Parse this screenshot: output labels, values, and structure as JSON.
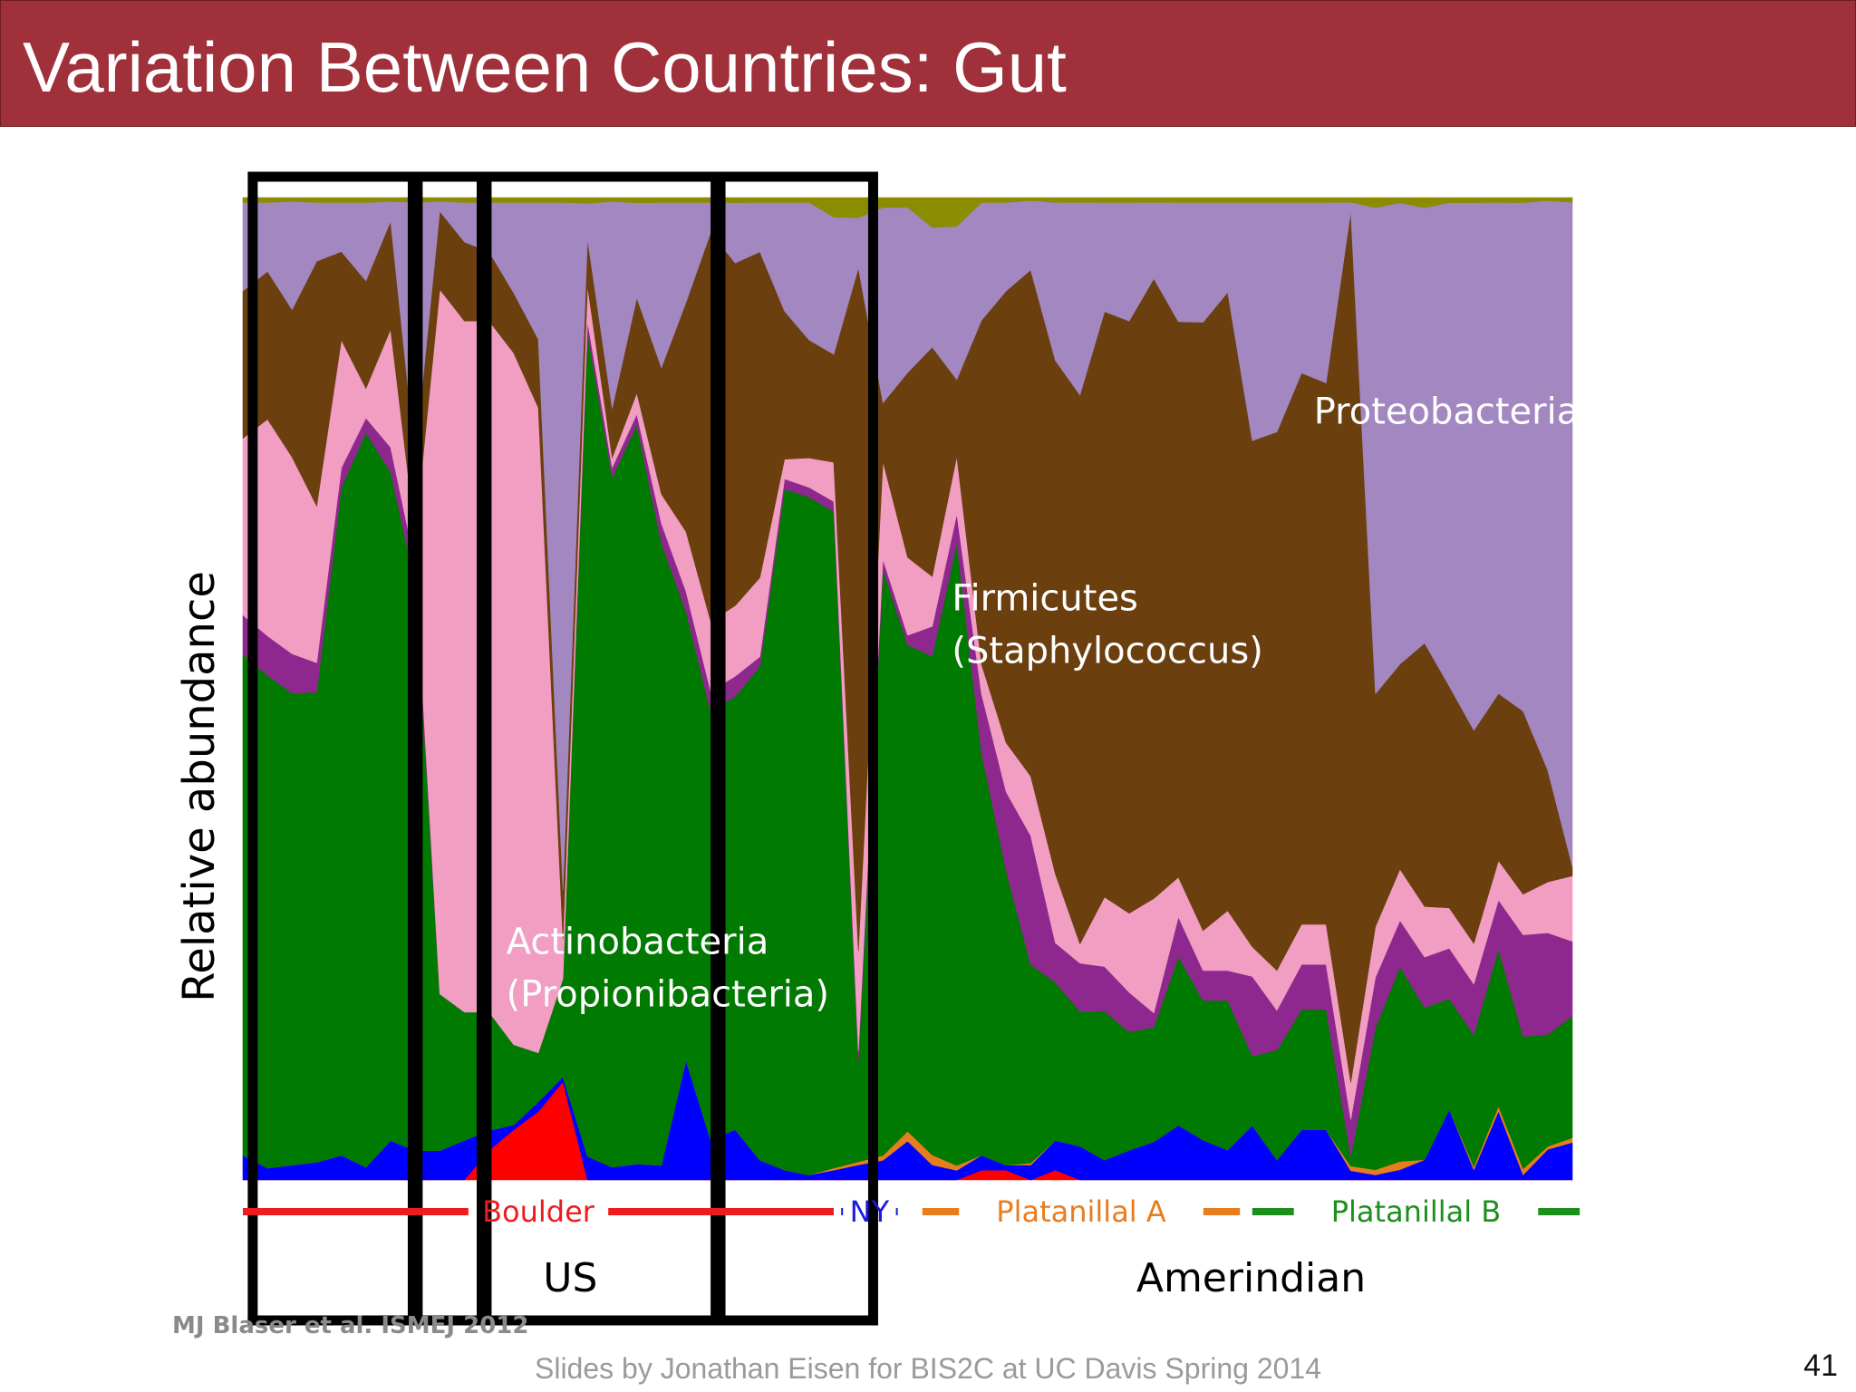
{
  "slide": {
    "title": "Variation Between Countries: Gut",
    "citation": "MJ Blaser et al. ISMEJ 2012",
    "footer": "Slides by Jonathan Eisen for BIS2C at UC Davis Spring 2014",
    "page_number": "41",
    "title_bar_color": "#a0303a"
  },
  "chart_data": {
    "type": "area",
    "stacked": "percent",
    "ylabel": "Relative abundance",
    "xlabel": "",
    "ylim": [
      0,
      1
    ],
    "n_samples": 55,
    "x": [
      1,
      2,
      3,
      4,
      5,
      6,
      7,
      8,
      9,
      10,
      11,
      12,
      13,
      14,
      15,
      16,
      17,
      18,
      19,
      20,
      21,
      22,
      23,
      24,
      25,
      26,
      27,
      28,
      29,
      30,
      31,
      32,
      33,
      34,
      35,
      36,
      37,
      38,
      39,
      40,
      41,
      42,
      43,
      44,
      45,
      46,
      47,
      48,
      49,
      50,
      51,
      52,
      53,
      54,
      55
    ],
    "series": [
      {
        "name": "",
        "color": "#ff0000",
        "values": [
          0,
          0,
          0,
          0,
          0,
          0,
          0,
          0,
          0,
          0,
          0.03,
          0.05,
          0.07,
          0.1,
          0,
          0,
          0,
          0,
          0,
          0,
          0,
          0,
          0,
          0,
          0,
          0,
          0,
          0,
          0,
          0,
          0.01,
          0.01,
          0,
          0.01,
          0,
          0,
          0,
          0,
          0,
          0,
          0,
          0,
          0,
          0,
          0,
          0,
          0,
          0,
          0,
          0,
          0,
          0,
          0,
          0,
          0
        ]
      },
      {
        "name": "",
        "color": "#0000ff",
        "values": [
          0.025,
          0.012,
          0.015,
          0.018,
          0.025,
          0.013,
          0.04,
          0.03,
          0.03,
          0.04,
          0.02,
          0.005,
          0.01,
          0.005,
          0.02,
          0.013,
          0.015,
          0.015,
          0.12,
          0.04,
          0.05,
          0.02,
          0.01,
          0.005,
          0.01,
          0.015,
          0.02,
          0.04,
          0.015,
          0.01,
          0.015,
          0.005,
          0.015,
          0.03,
          0.035,
          0.02,
          0.03,
          0.04,
          0.055,
          0.04,
          0.03,
          0.055,
          0.02,
          0.05,
          0.05,
          0.01,
          0.005,
          0.01,
          0.02,
          0.07,
          0.01,
          0.07,
          0.005,
          0.03,
          0.04
        ]
      },
      {
        "name": "",
        "color": "#e87d1e",
        "values": [
          0,
          0,
          0,
          0,
          0,
          0,
          0,
          0,
          0,
          0,
          0,
          0,
          0,
          0,
          0,
          0,
          0,
          0,
          0,
          0,
          0,
          0,
          0,
          0,
          0.002,
          0.003,
          0.005,
          0.01,
          0.01,
          0.005,
          0,
          0,
          0.002,
          0,
          0,
          0,
          0,
          0,
          0,
          0,
          0,
          0,
          0,
          0,
          0,
          0.005,
          0.005,
          0.008,
          0,
          0,
          0.003,
          0.005,
          0.006,
          0.003,
          0.005
        ]
      },
      {
        "name": "Actinobacteria (Propionibacteria)",
        "color": "#007a00",
        "values": [
          0.51,
          0.5,
          0.48,
          0.48,
          0.68,
          0.75,
          0.68,
          0.58,
          0.16,
          0.13,
          0.12,
          0.08,
          0.05,
          0.1,
          0.7,
          0.7,
          0.7,
          0.64,
          0.45,
          0.43,
          0.43,
          0.5,
          0.69,
          0.69,
          0.67,
          0.1,
          0.6,
          0.5,
          0.5,
          0.65,
          0.41,
          0.3,
          0.2,
          0.16,
          0.14,
          0.15,
          0.12,
          0.12,
          0.17,
          0.14,
          0.15,
          0.07,
          0.11,
          0.12,
          0.12,
          0.01,
          0.14,
          0.19,
          0.15,
          0.11,
          0.13,
          0.16,
          0.13,
          0.11,
          0.13
        ]
      },
      {
        "name": "",
        "color": "#8e288e",
        "values": [
          0.04,
          0.04,
          0.04,
          0.03,
          0.02,
          0.015,
          0.025,
          0.02,
          0,
          0,
          0,
          0,
          0,
          0,
          0.01,
          0.01,
          0.01,
          0.02,
          0.02,
          0.02,
          0.02,
          0.01,
          0.01,
          0.01,
          0.01,
          0.01,
          0.01,
          0.01,
          0.03,
          0.03,
          0.06,
          0.08,
          0.13,
          0.04,
          0.05,
          0.045,
          0.04,
          0.015,
          0.04,
          0.03,
          0.03,
          0.08,
          0.04,
          0.045,
          0.045,
          0.04,
          0.05,
          0.045,
          0.05,
          0.05,
          0.05,
          0.05,
          0.1,
          0.1,
          0.08
        ]
      },
      {
        "name": "",
        "color": "#f19ec2",
        "values": [
          0.18,
          0.22,
          0.2,
          0.16,
          0.13,
          0.03,
          0.12,
          0.03,
          0.72,
          0.7,
          0.7,
          0.69,
          0.66,
          0.04,
          0.03,
          0.01,
          0.02,
          0.03,
          0.06,
          0.07,
          0.07,
          0.08,
          0.02,
          0.03,
          0.04,
          0.1,
          0.1,
          0.08,
          0.05,
          0.06,
          0.03,
          0.05,
          0.06,
          0.07,
          0.02,
          0.07,
          0.08,
          0.12,
          0.04,
          0.04,
          0.06,
          0.03,
          0.04,
          0.04,
          0.04,
          0.04,
          0.05,
          0.05,
          0.05,
          0.04,
          0.04,
          0.04,
          0.04,
          0.05,
          0.07
        ]
      },
      {
        "name": "Firmicutes (Staphylococcus)",
        "color": "#6b3f0e",
        "values": [
          0.15,
          0.15,
          0.15,
          0.25,
          0.09,
          0.11,
          0.11,
          0.08,
          0.08,
          0.08,
          0.07,
          0.06,
          0.07,
          0.05,
          0.04,
          0.05,
          0.09,
          0.13,
          0.23,
          0.39,
          0.34,
          0.33,
          0.15,
          0.12,
          0.11,
          0.68,
          0.06,
          0.19,
          0.23,
          0.08,
          0.35,
          0.46,
          0.51,
          0.52,
          0.57,
          0.59,
          0.6,
          0.65,
          0.56,
          0.61,
          0.62,
          0.51,
          0.54,
          0.55,
          0.54,
          0.94,
          0.23,
          0.2,
          0.26,
          0.22,
          0.21,
          0.17,
          0.18,
          0.11,
          0.01
        ]
      },
      {
        "name": "Proteobacteria",
        "color": "#a287c0",
        "values": [
          0.09,
          0.07,
          0.11,
          0.06,
          0.05,
          0.08,
          0.02,
          0.26,
          0.01,
          0.04,
          0.05,
          0.09,
          0.14,
          0.7,
          0.03,
          0.21,
          0.09,
          0.17,
          0.1,
          0.03,
          0.06,
          0.05,
          0.11,
          0.14,
          0.14,
          0.05,
          0.2,
          0.17,
          0.12,
          0.16,
          0.12,
          0.09,
          0.07,
          0.16,
          0.2,
          0.11,
          0.12,
          0.08,
          0.12,
          0.12,
          0.09,
          0.24,
          0.23,
          0.17,
          0.18,
          0.01,
          0.48,
          0.45,
          0.43,
          0.48,
          0.52,
          0.5,
          0.5,
          0.56,
          0.71
        ]
      },
      {
        "name": "",
        "color": "#8c8c00",
        "values": [
          0.005,
          0.005,
          0.004,
          0.005,
          0.005,
          0.005,
          0.004,
          0.005,
          0.004,
          0.005,
          0.005,
          0.005,
          0.005,
          0.005,
          0.005,
          0.004,
          0.005,
          0.005,
          0.005,
          0.005,
          0.005,
          0.005,
          0.005,
          0.005,
          0.02,
          0.02,
          0.01,
          0.01,
          0.03,
          0.03,
          0.005,
          0.005,
          0.003,
          0.005,
          0.005,
          0.005,
          0.005,
          0.005,
          0.005,
          0.005,
          0.005,
          0.005,
          0.005,
          0.005,
          0.005,
          0.005,
          0.01,
          0.005,
          0.01,
          0.005,
          0.005,
          0.005,
          0.005,
          0.003,
          0.005
        ]
      }
    ],
    "annotations": [
      {
        "text_lines": [
          "Proteobacteria"
        ],
        "color": "#ffffff",
        "x": 44.5,
        "y": 0.77
      },
      {
        "text_lines": [
          "Firmicutes",
          "(Staphylococcus)"
        ],
        "color": "#ffffff",
        "x": 29.8,
        "y": 0.58
      },
      {
        "text_lines": [
          "Actinobacteria",
          "(Propionibacteria)"
        ],
        "color": "#ffffff",
        "x": 11.7,
        "y": 0.23
      }
    ],
    "group_bars": [
      {
        "label": "Boulder",
        "color": "#ee1c1c",
        "from": 1,
        "to": 25
      },
      {
        "label": "NY",
        "color": "#1a1adf",
        "from": 25.3,
        "to": 27.6
      },
      {
        "label": "Platanillal A",
        "color": "#e87d1e",
        "from": 28.6,
        "to": 41.5
      },
      {
        "label": "Platanillal B",
        "color": "#1d8f1d",
        "from": 42,
        "to": 55.3
      }
    ],
    "group_labels": [
      {
        "label": "US",
        "from": 1,
        "to": 27.6
      },
      {
        "label": "Amerindian",
        "from": 28.6,
        "to": 55.3
      }
    ],
    "boxes": [
      {
        "from": 1.4,
        "to": 8.1
      },
      {
        "from": 7.9,
        "to": 10.9
      },
      {
        "from": 10.7,
        "to": 20.4
      },
      {
        "from": 20.2,
        "to": 26.6
      }
    ]
  }
}
